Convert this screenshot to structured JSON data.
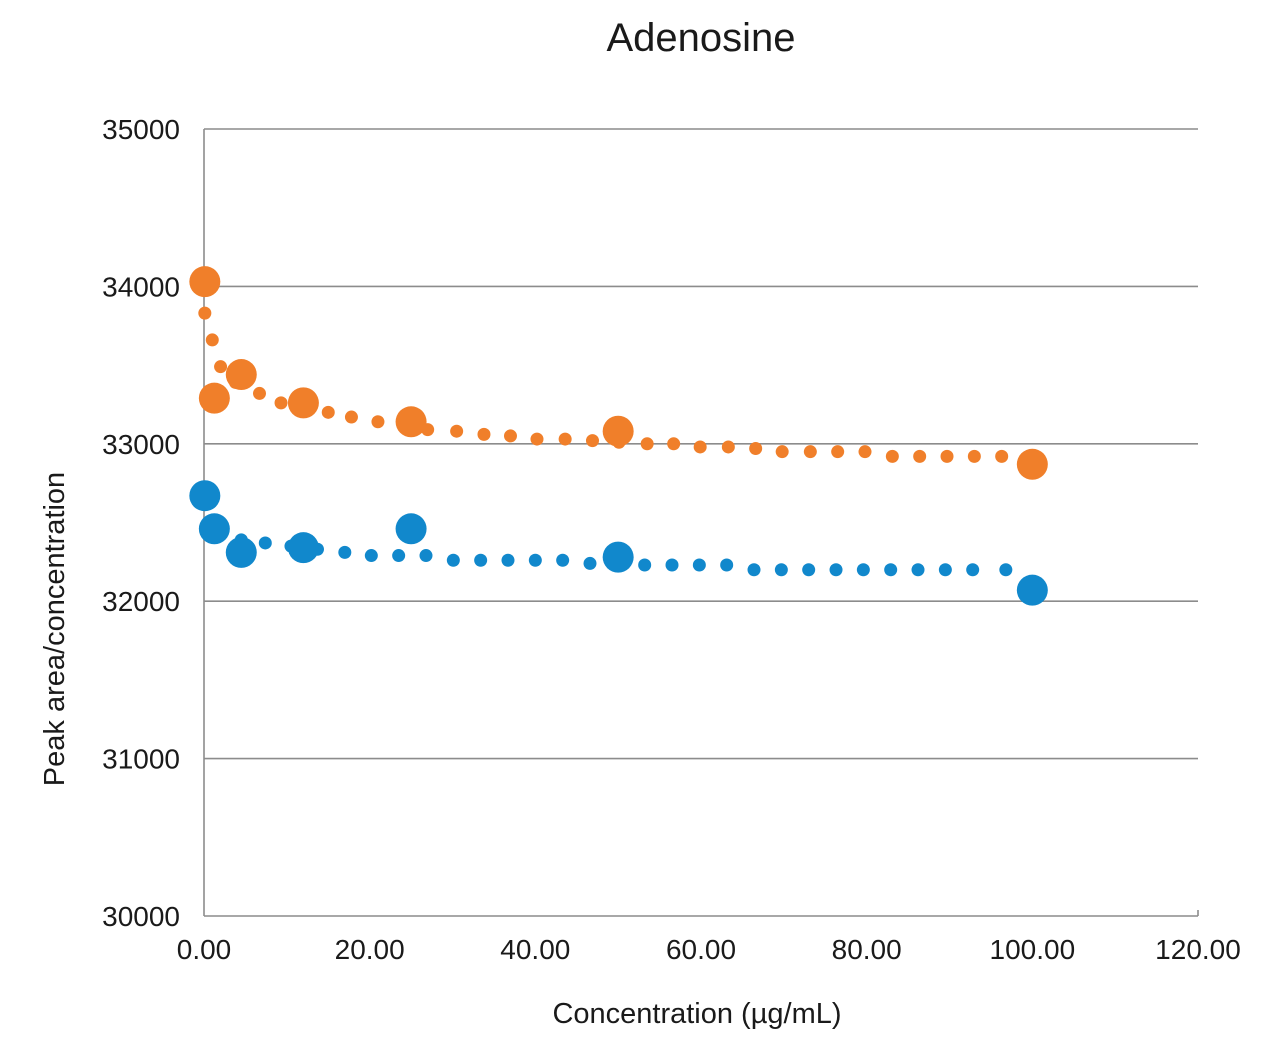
{
  "chart_data": {
    "type": "scatter",
    "title": "Adenosine",
    "xlabel": "Concentration (µg/mL)",
    "ylabel": "Peak area/concentration",
    "xlim": [
      0,
      120
    ],
    "ylim": [
      30000,
      35000
    ],
    "x_ticks": [
      "0.00",
      "20.00",
      "40.00",
      "60.00",
      "80.00",
      "100.00",
      "120.00"
    ],
    "y_ticks": [
      "30000",
      "31000",
      "32000",
      "33000",
      "34000",
      "35000"
    ],
    "grid": true,
    "legend": "none",
    "trendline": "dotted logarithmic",
    "series": [
      {
        "color": "#f07f2a",
        "x": [
          0.1,
          1.25,
          4.5,
          12.0,
          25.0,
          50.0,
          100.0
        ],
        "y": [
          34030,
          33290,
          33440,
          33260,
          33140,
          33080,
          32870
        ],
        "trend": [
          [
            0.1,
            33830
          ],
          [
            1.0,
            33660
          ],
          [
            2.0,
            33490
          ],
          [
            3.8,
            33390
          ],
          [
            6.7,
            33320
          ],
          [
            9.3,
            33260
          ],
          [
            12.5,
            33220
          ],
          [
            15.0,
            33200
          ],
          [
            17.8,
            33170
          ],
          [
            21.0,
            33140
          ],
          [
            27.0,
            33090
          ],
          [
            30.5,
            33080
          ],
          [
            33.8,
            33060
          ],
          [
            37.0,
            33050
          ],
          [
            40.2,
            33030
          ],
          [
            43.6,
            33030
          ],
          [
            46.9,
            33020
          ],
          [
            50.1,
            33010
          ],
          [
            53.5,
            33000
          ],
          [
            56.7,
            33000
          ],
          [
            59.9,
            32980
          ],
          [
            63.3,
            32980
          ],
          [
            66.6,
            32970
          ],
          [
            69.8,
            32950
          ],
          [
            73.2,
            32950
          ],
          [
            76.5,
            32950
          ],
          [
            79.8,
            32950
          ],
          [
            83.1,
            32920
          ],
          [
            86.4,
            32920
          ],
          [
            89.7,
            32920
          ],
          [
            93.0,
            32920
          ],
          [
            96.3,
            32920
          ]
        ]
      },
      {
        "color": "#1188cc",
        "x": [
          0.1,
          1.25,
          4.5,
          12.0,
          25.0,
          50.0,
          100.0
        ],
        "y": [
          32670,
          32460,
          32310,
          32340,
          32460,
          32280,
          32070
        ],
        "trend": [
          [
            4.5,
            32390
          ],
          [
            7.4,
            32370
          ],
          [
            10.5,
            32350
          ],
          [
            13.7,
            32330
          ],
          [
            17.0,
            32310
          ],
          [
            20.2,
            32290
          ],
          [
            23.5,
            32290
          ],
          [
            26.8,
            32290
          ],
          [
            30.1,
            32260
          ],
          [
            33.4,
            32260
          ],
          [
            36.7,
            32260
          ],
          [
            40.0,
            32260
          ],
          [
            43.3,
            32260
          ],
          [
            46.6,
            32240
          ],
          [
            53.2,
            32230
          ],
          [
            56.5,
            32230
          ],
          [
            59.8,
            32230
          ],
          [
            63.1,
            32230
          ],
          [
            66.4,
            32200
          ],
          [
            69.7,
            32200
          ],
          [
            73.0,
            32200
          ],
          [
            76.3,
            32200
          ],
          [
            79.6,
            32200
          ],
          [
            82.9,
            32200
          ],
          [
            86.2,
            32200
          ],
          [
            89.5,
            32200
          ],
          [
            92.8,
            32200
          ],
          [
            96.8,
            32200
          ]
        ]
      }
    ]
  }
}
